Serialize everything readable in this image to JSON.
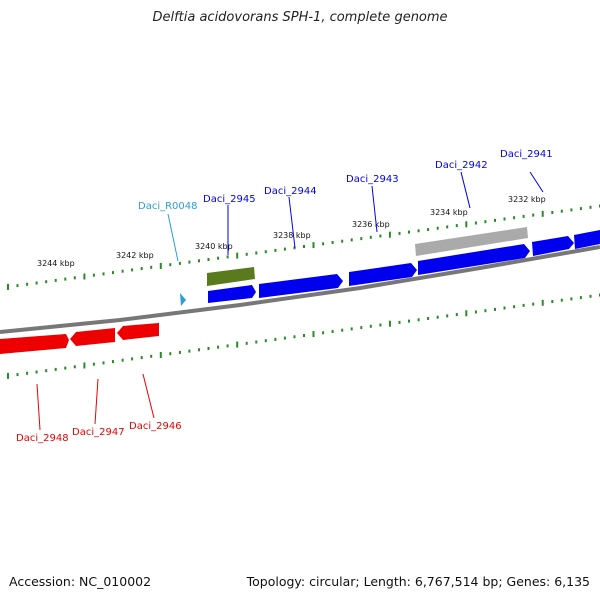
{
  "title": "Delftia acidovorans SPH-1, complete genome",
  "footer": {
    "accession": "Accession: NC_010002",
    "summary": "Topology: circular; Length: 6,767,514 bp; Genes: 6,135"
  },
  "colors": {
    "forward_gene": "#0000ee",
    "reverse_gene": "#ee0000",
    "rna": "#2a9fd6",
    "pseudo": "#5a7a1e",
    "other": "#aaaaaa",
    "backbone": "#777777",
    "ticks": "#2a8a2a"
  },
  "scale_labels": [
    "3244 kbp",
    "3242 kbp",
    "3240 kbp",
    "3238 kbp",
    "3236 kbp",
    "3234 kbp",
    "3232 kbp"
  ],
  "genes": [
    {
      "label": "Daci_2941",
      "strand": "forward"
    },
    {
      "label": "Daci_2942",
      "strand": "forward"
    },
    {
      "label": "Daci_2943",
      "strand": "forward"
    },
    {
      "label": "Daci_2944",
      "strand": "forward"
    },
    {
      "label": "Daci_2945",
      "strand": "forward"
    },
    {
      "label": "Daci_R0048",
      "strand": "forward"
    },
    {
      "label": "Daci_2946",
      "strand": "reverse"
    },
    {
      "label": "Daci_2947",
      "strand": "reverse"
    },
    {
      "label": "Daci_2948",
      "strand": "reverse"
    }
  ]
}
